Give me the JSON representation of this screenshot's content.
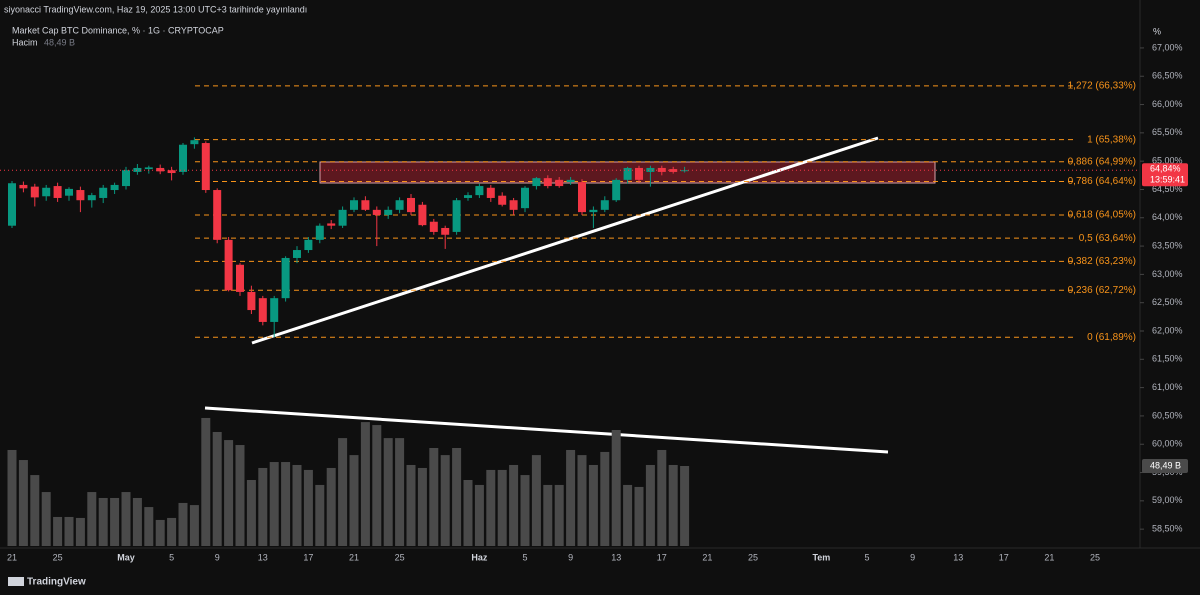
{
  "header": {
    "published": "siyonacci TradingView.com, Haz 19, 2025 13:00 UTC+3 tarihinde yayınlandı",
    "symbol": "Market Cap BTC Dominance, % · 1G · CRYPTOCAP",
    "volume_title": "Hacim",
    "volume_value": "48,49 B",
    "axis_unit": "%",
    "logo": "TradingView",
    "last_price_label": "64,84%",
    "countdown": "13:59:41"
  },
  "chart_data": {
    "type": "candlestick",
    "title": "Market Cap BTC Dominance, % · 1G · CRYPTOCAP",
    "up_color": "#089981",
    "down_color": "#f23645",
    "volume_color": "#4a4a4a",
    "fib_color": "#f7931a",
    "grid": false,
    "categories": [
      "21",
      null,
      null,
      null,
      "25",
      null,
      null,
      null,
      null,
      null,
      "May",
      null,
      null,
      null,
      "5",
      null,
      null,
      null,
      "9",
      null,
      null,
      null,
      "13",
      null,
      null,
      null,
      "17",
      null,
      null,
      null,
      "21",
      null,
      null,
      null,
      "25",
      null,
      null,
      null,
      null,
      null,
      null,
      "Haz",
      null,
      null,
      null,
      "5",
      null,
      null,
      null,
      "9",
      null,
      null,
      null,
      "13",
      null,
      null,
      null,
      "17",
      null,
      null,
      null,
      "21",
      null,
      null,
      null,
      "25",
      null,
      null,
      null,
      null,
      null,
      "Tem",
      null,
      null,
      null,
      "5",
      null,
      null,
      null,
      "9",
      null,
      null,
      null,
      "13",
      null,
      null,
      null,
      "17",
      null,
      null,
      null,
      "21",
      null,
      null,
      null,
      "25"
    ],
    "open": [
      63.86,
      64.58,
      64.55,
      64.38,
      64.56,
      64.39,
      64.49,
      64.31,
      64.35,
      64.49,
      64.56,
      64.81,
      64.86,
      64.88,
      64.84,
      64.81,
      65.3,
      65.32,
      64.49,
      63.61,
      63.17,
      62.69,
      62.58,
      62.16,
      62.58,
      63.29,
      63.43,
      63.61,
      63.9,
      63.86,
      64.14,
      64.31,
      64.14,
      64.05,
      64.14,
      64.35,
      64.23,
      63.93,
      63.82,
      63.75,
      64.35,
      64.4,
      64.53,
      64.39,
      64.31,
      64.17,
      64.56,
      64.7,
      64.67,
      64.63,
      64.63,
      64.1,
      64.14,
      64.31,
      64.67,
      64.88,
      64.81,
      64.88,
      64.86,
      64.84,
      null,
      null,
      null,
      null,
      null,
      null,
      null,
      null,
      null,
      null,
      null,
      null,
      null,
      null,
      null,
      null,
      null,
      null,
      null,
      null,
      null,
      null,
      null,
      null,
      null,
      null,
      null,
      null,
      null,
      null,
      null,
      null,
      null,
      null,
      null,
      null
    ],
    "high": [
      64.65,
      64.64,
      64.6,
      64.58,
      64.62,
      64.54,
      64.55,
      64.44,
      64.58,
      64.62,
      64.9,
      64.95,
      64.92,
      64.94,
      64.9,
      65.32,
      65.42,
      65.35,
      64.52,
      63.66,
      63.2,
      62.8,
      62.62,
      62.62,
      63.32,
      63.5,
      63.66,
      63.9,
      63.96,
      64.2,
      64.36,
      64.38,
      64.2,
      64.2,
      64.36,
      64.42,
      64.28,
      63.98,
      63.86,
      64.35,
      64.45,
      64.6,
      64.58,
      64.45,
      64.35,
      64.56,
      64.72,
      64.75,
      64.72,
      64.72,
      64.68,
      64.2,
      64.38,
      64.7,
      64.9,
      64.92,
      64.92,
      64.92,
      64.9,
      64.9,
      null,
      null,
      null,
      null,
      null,
      null,
      null,
      null,
      null,
      null,
      null,
      null,
      null,
      null,
      null,
      null,
      null,
      null,
      null,
      null,
      null,
      null,
      null,
      null,
      null,
      null,
      null,
      null,
      null,
      null,
      null,
      null,
      null,
      null,
      null,
      null
    ],
    "low": [
      63.82,
      64.45,
      64.2,
      64.3,
      64.28,
      64.3,
      64.1,
      64.18,
      64.26,
      64.42,
      64.5,
      64.76,
      64.78,
      64.77,
      64.66,
      64.76,
      65.22,
      64.44,
      63.55,
      62.7,
      62.62,
      62.3,
      62.1,
      61.89,
      62.52,
      63.2,
      63.38,
      63.55,
      63.8,
      63.82,
      64.1,
      64.12,
      63.5,
      63.98,
      64.08,
      64.05,
      63.85,
      63.7,
      63.45,
      63.7,
      64.3,
      64.35,
      64.28,
      64.2,
      64.05,
      64.1,
      64.5,
      64.52,
      64.53,
      64.58,
      64.05,
      63.82,
      64.1,
      64.28,
      64.6,
      64.62,
      64.55,
      64.75,
      64.78,
      64.8,
      null,
      null,
      null,
      null,
      null,
      null,
      null,
      null,
      null,
      null,
      null,
      null,
      null,
      null,
      null,
      null,
      null,
      null,
      null,
      null,
      null,
      null,
      null,
      null,
      null,
      null,
      null,
      null,
      null,
      null,
      null,
      null,
      null,
      null,
      null,
      null
    ],
    "close": [
      64.61,
      64.52,
      64.36,
      64.53,
      64.35,
      64.51,
      64.31,
      64.4,
      64.53,
      64.58,
      64.84,
      64.88,
      64.89,
      64.82,
      64.79,
      65.29,
      65.37,
      64.49,
      63.61,
      62.72,
      62.69,
      62.37,
      62.16,
      62.58,
      63.29,
      63.43,
      63.61,
      63.86,
      63.86,
      64.14,
      64.31,
      64.14,
      64.05,
      64.14,
      64.31,
      64.1,
      63.87,
      63.75,
      63.7,
      64.31,
      64.4,
      64.56,
      64.35,
      64.23,
      64.14,
      64.53,
      64.7,
      64.56,
      64.56,
      64.67,
      64.1,
      64.14,
      64.31,
      64.67,
      64.88,
      64.67,
      64.88,
      64.81,
      64.81,
      64.84,
      null,
      null,
      null,
      null,
      null,
      null,
      null,
      null,
      null,
      null,
      null,
      null,
      null,
      null,
      null,
      null,
      null,
      null,
      null,
      null,
      null,
      null,
      null,
      null,
      null,
      null,
      null,
      null,
      null,
      null,
      null,
      null,
      null,
      null,
      null,
      null
    ],
    "volume": [
      58.2,
      52.1,
      43.0,
      32.7,
      17.6,
      17.6,
      17.0,
      32.7,
      29.1,
      29.1,
      32.7,
      29.1,
      23.6,
      15.8,
      17.0,
      26.1,
      24.8,
      77.6,
      69.1,
      64.2,
      61.2,
      40.0,
      47.3,
      50.9,
      50.9,
      49.1,
      46.1,
      37.0,
      47.3,
      65.4,
      55.1,
      75.1,
      73.3,
      65.4,
      65.4,
      49.1,
      47.3,
      59.4,
      55.1,
      59.4,
      40.0,
      37.0,
      46.1,
      46.1,
      49.1,
      43.0,
      55.1,
      37.0,
      37.0,
      58.2,
      55.1,
      49.1,
      57.0,
      70.3,
      37.0,
      35.8,
      49.1,
      58.2,
      49.1,
      48.49,
      null,
      null,
      null,
      null,
      null,
      null,
      null,
      null,
      null,
      null,
      null,
      null,
      null,
      null,
      null,
      null,
      null,
      null,
      null,
      null,
      null,
      null,
      null,
      null,
      null,
      null,
      null,
      null,
      null,
      null,
      null,
      null,
      null,
      null,
      null,
      null
    ],
    "ylim": [
      58.22,
      67.67
    ],
    "volume_ylim": [
      0,
      160
    ],
    "yticks": [
      {
        "value": 67.0,
        "label": "67,00%"
      },
      {
        "value": 66.5,
        "label": "66,50%"
      },
      {
        "value": 66.0,
        "label": "66,00%"
      },
      {
        "value": 65.5,
        "label": "65,50%"
      },
      {
        "value": 65.0,
        "label": "65,00%"
      },
      {
        "value": 64.5,
        "label": "64,50%"
      },
      {
        "value": 64.0,
        "label": "64,00%"
      },
      {
        "value": 63.5,
        "label": "63,50%"
      },
      {
        "value": 63.0,
        "label": "63,00%"
      },
      {
        "value": 62.5,
        "label": "62,50%"
      },
      {
        "value": 62.0,
        "label": "62,00%"
      },
      {
        "value": 61.5,
        "label": "61,50%"
      },
      {
        "value": 61.0,
        "label": "61,00%"
      },
      {
        "value": 60.5,
        "label": "60,50%"
      },
      {
        "value": 60.0,
        "label": "60,00%"
      },
      {
        "value": 59.5,
        "label": "59,50%"
      },
      {
        "value": 59.0,
        "label": "59,00%"
      },
      {
        "value": 58.5,
        "label": "58,50%"
      }
    ],
    "fib_levels": [
      {
        "value": 66.33,
        "label": "1,272 (66,33%)"
      },
      {
        "value": 65.38,
        "label": "1 (65,38%)"
      },
      {
        "value": 64.99,
        "label": "0,886 (64,99%)"
      },
      {
        "value": 64.64,
        "label": "0,786 (64,64%)"
      },
      {
        "value": 64.05,
        "label": "0,618 (64,05%)"
      },
      {
        "value": 63.64,
        "label": "0,5 (63,64%)"
      },
      {
        "value": 63.23,
        "label": "0,382 (63,23%)"
      },
      {
        "value": 62.72,
        "label": "0,236 (62,72%)"
      },
      {
        "value": 61.89,
        "label": "0 (61,89%)"
      }
    ]
  }
}
